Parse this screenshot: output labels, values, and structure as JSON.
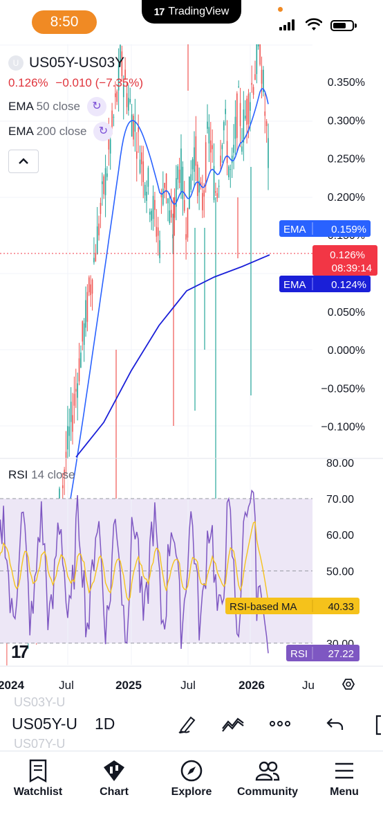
{
  "status_bar": {
    "time": "8:50",
    "app_banner": "TradingView"
  },
  "header": {
    "symbol": "US05Y-US03Y",
    "symbol_badge": "U",
    "last": "0.126%",
    "change": "−0.010",
    "change_pct": "(−7.35%)"
  },
  "indicators": [
    {
      "name": "EMA",
      "params": "50 close"
    },
    {
      "name": "EMA",
      "params": "200 close"
    }
  ],
  "price_axis": {
    "ticks": [
      "0.350%",
      "0.300%",
      "0.250%",
      "0.200%",
      "0.150%",
      "0.100%",
      "0.050%",
      "0.000%",
      "−0.050%",
      "−0.100%"
    ],
    "ema50_tag": {
      "label": "EMA",
      "value": "0.159%"
    },
    "last_tag": {
      "value": "0.126%",
      "countdown": "08:39:14"
    },
    "ema200_tag": {
      "label": "EMA",
      "value": "0.124%"
    }
  },
  "rsi_panel": {
    "name": "RSI",
    "params": "14 close",
    "ticks": [
      "80.00",
      "70.00",
      "60.00",
      "50.00",
      "30.00"
    ],
    "ma_tag": {
      "label": "RSI-based MA",
      "value": "40.33"
    },
    "rsi_tag": {
      "label": "RSI",
      "value": "27.22"
    }
  },
  "time_axis": {
    "labels": [
      "2024",
      "Jul",
      "2025",
      "Jul",
      "2026",
      "Ju"
    ]
  },
  "toolbar": {
    "symbol": "US05Y-U",
    "interval": "1D",
    "ghost_above": "US03Y-U",
    "ghost_below": "US07Y-U"
  },
  "nav": [
    {
      "label": "Watchlist",
      "icon": "watchlist-icon"
    },
    {
      "label": "Chart",
      "icon": "chart-icon"
    },
    {
      "label": "Explore",
      "icon": "compass-icon"
    },
    {
      "label": "Community",
      "icon": "community-icon"
    },
    {
      "label": "Menu",
      "icon": "menu-icon"
    }
  ],
  "colors": {
    "ema50": "#2962ff",
    "ema200": "#1a1fd8",
    "up": "#26a69a",
    "down": "#ef5350",
    "rsi": "#7e57c2",
    "rsi_ma": "#f5c21b",
    "last": "#f23645",
    "rsi_band": "#ede7f6"
  },
  "chart_data": {
    "type": "candlestick",
    "series": [
      {
        "name": "EMA 50 close",
        "last": 0.159
      },
      {
        "name": "EMA 200 close",
        "last": 0.124
      },
      {
        "name": "RSI 14 close",
        "last": 27.22
      },
      {
        "name": "RSI-based MA",
        "last": 40.33
      }
    ],
    "price_range": [
      -0.13,
      0.37
    ],
    "rsi_range": [
      26,
      80
    ],
    "rsi_bands": [
      30,
      50,
      70
    ],
    "x_range": [
      "2024",
      "2026"
    ]
  }
}
